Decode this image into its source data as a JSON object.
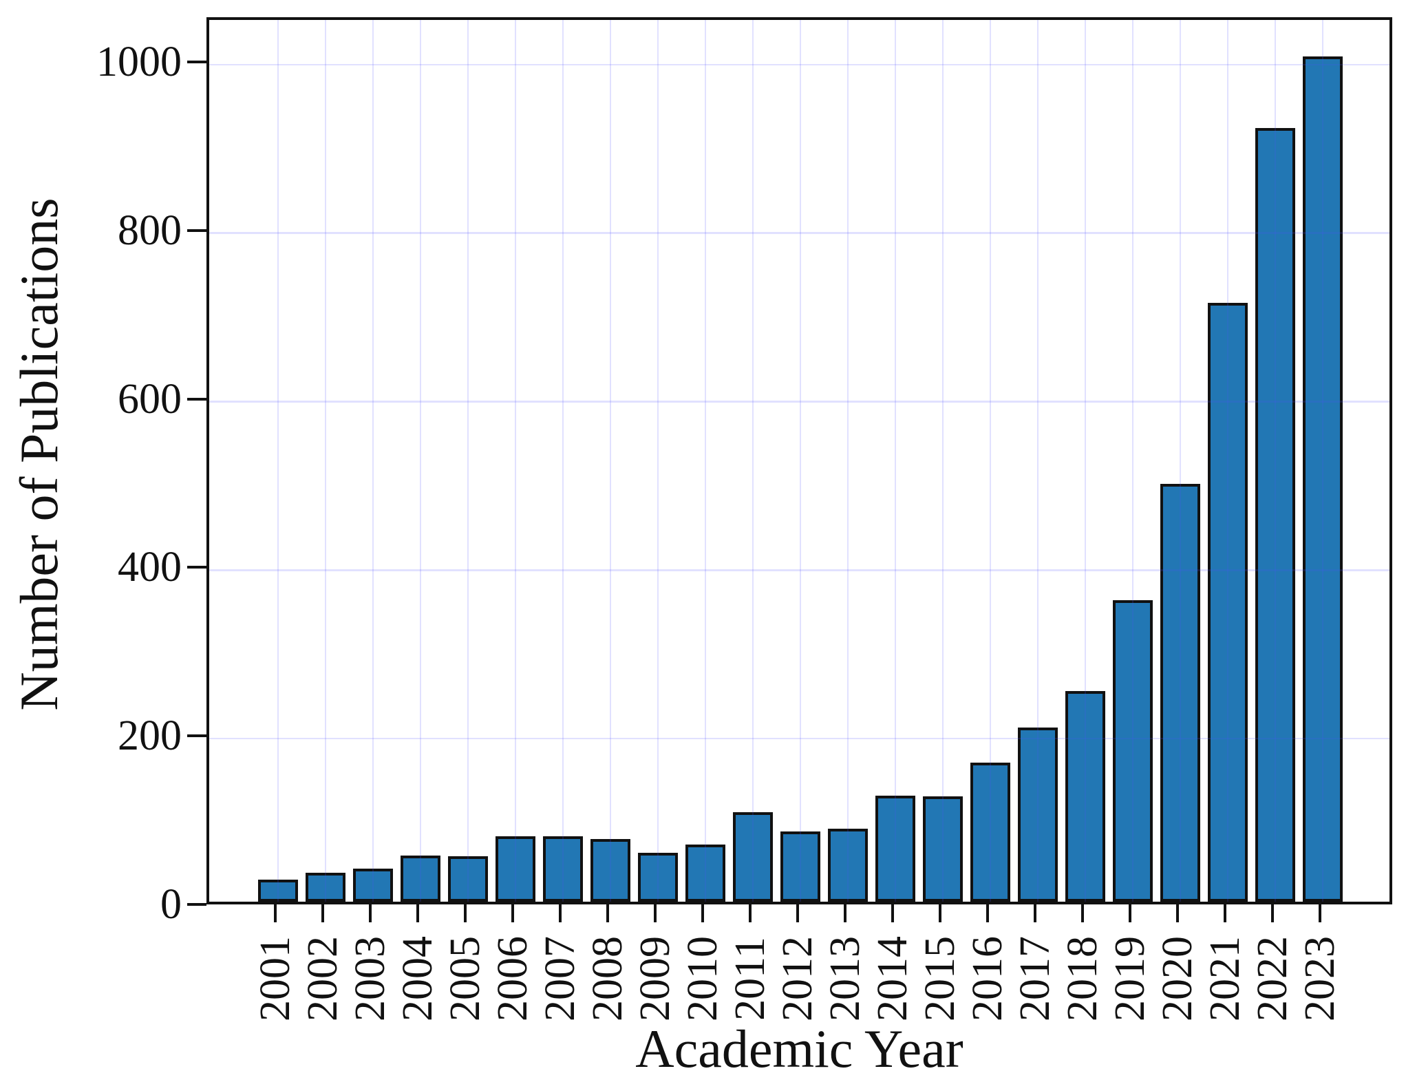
{
  "chart_data": {
    "type": "bar",
    "title": "",
    "xlabel": "Academic Year",
    "ylabel": "Number of Publications",
    "categories": [
      "2001",
      "2002",
      "2003",
      "2004",
      "2005",
      "2006",
      "2007",
      "2008",
      "2009",
      "2010",
      "2011",
      "2012",
      "2013",
      "2014",
      "2015",
      "2016",
      "2017",
      "2018",
      "2019",
      "2020",
      "2021",
      "2022",
      "2023"
    ],
    "values": [
      26,
      34,
      39,
      55,
      54,
      78,
      78,
      74,
      58,
      68,
      106,
      83,
      87,
      126,
      125,
      165,
      207,
      250,
      358,
      496,
      711,
      918,
      1003
    ],
    "yticks": [
      0,
      200,
      400,
      600,
      800,
      1000
    ],
    "ylim": [
      0,
      1053
    ],
    "grid": "on",
    "legend": "none",
    "colors": {
      "bar_fill": "#2277b4",
      "bar_edge": "#111111",
      "grid_line": "rgba(80,80,255,0.17)",
      "frame": "#111111",
      "text": "#111111",
      "background": "#ffffff"
    }
  }
}
